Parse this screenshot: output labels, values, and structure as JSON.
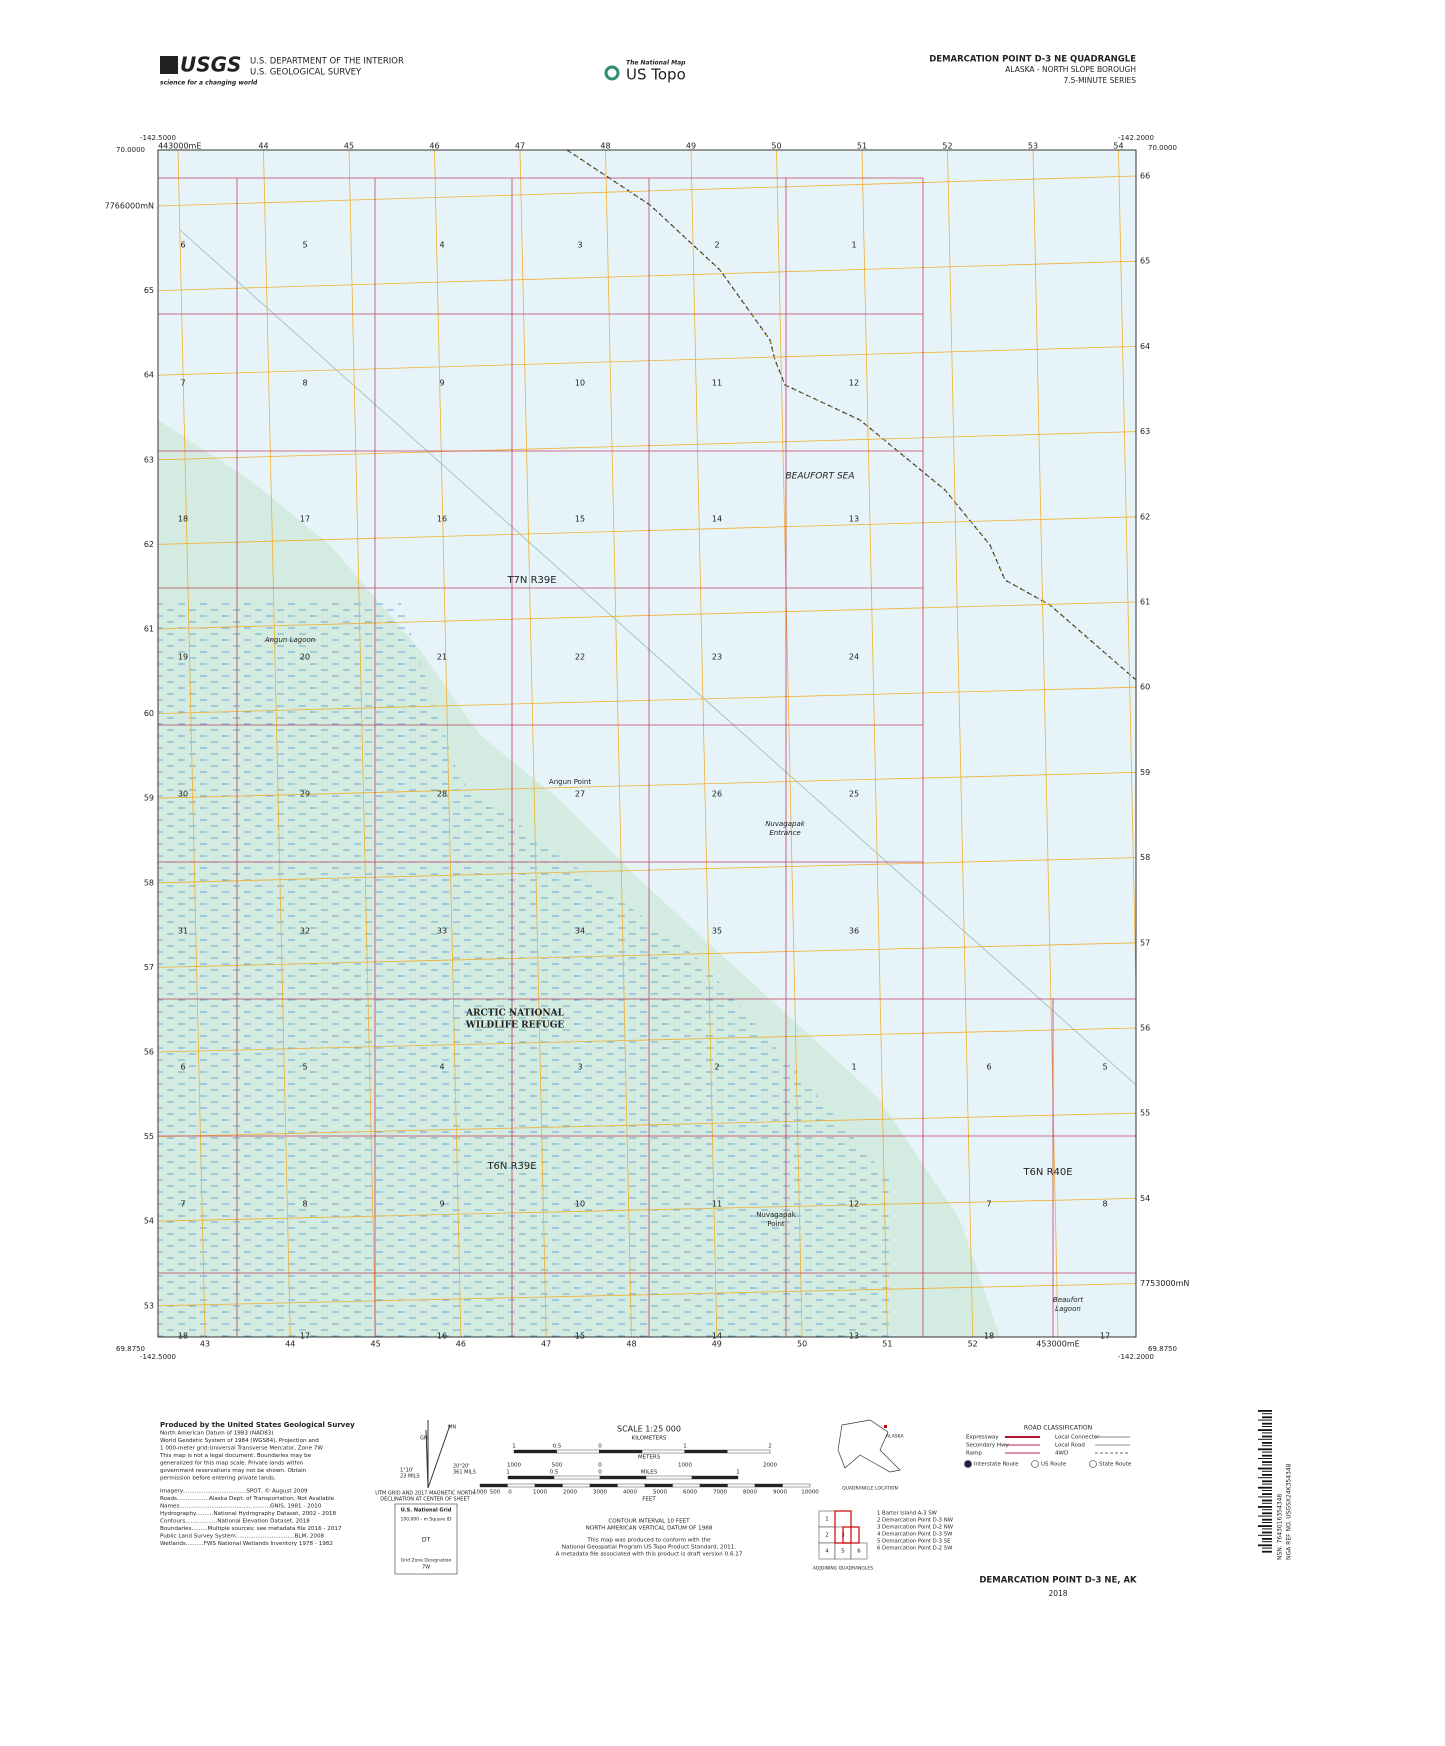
{
  "header": {
    "usgs_logo": "USGS",
    "usgs_tagline": "science for a changing world",
    "agency": [
      "U.S. DEPARTMENT OF THE INTERIOR",
      "U.S. GEOLOGICAL SURVEY"
    ],
    "national_map": "The National Map",
    "us_topo": "US Topo",
    "quad_title": "DEMARCATION POINT D-3 NE QUADRANGLE",
    "subtitle": "ALASKA - NORTH SLOPE BOROUGH",
    "series": "7.5-MINUTE SERIES"
  },
  "map": {
    "corners": {
      "top_left_lon": "-142.5000",
      "top_left_lat": "70.0000",
      "top_right_lon": "-142.2000",
      "top_right_lat": "70.0000",
      "bottom_left_lat": "69.8750",
      "bottom_left_lon": "-142.5000",
      "bottom_right_lat": "69.8750",
      "bottom_right_lon": "-142.2000"
    },
    "easting_top": [
      "443000mE",
      "44",
      "45",
      "46",
      "47",
      "48",
      "49",
      "50",
      "51",
      "52",
      "53",
      "54"
    ],
    "easting_bottom": [
      "43",
      "44",
      "45",
      "46",
      "47",
      "48",
      "49",
      "50",
      "51",
      "52",
      "453000mE"
    ],
    "northing_left": [
      "7766000mN",
      "65",
      "64",
      "63",
      "62",
      "61",
      "60",
      "59",
      "58",
      "57",
      "56",
      "55",
      "54",
      "53"
    ],
    "northing_right": [
      "66",
      "65",
      "64",
      "63",
      "62",
      "61",
      "60",
      "59",
      "58",
      "57",
      "56",
      "55",
      "54",
      "7753000mN"
    ],
    "sections": [
      [
        "6",
        "5",
        "4",
        "3",
        "2",
        "1"
      ],
      [
        "7",
        "8",
        "9",
        "10",
        "11",
        "12"
      ],
      [
        "18",
        "17",
        "16",
        "15",
        "14",
        "13"
      ],
      [
        "19",
        "20",
        "21",
        "22",
        "23",
        "24"
      ],
      [
        "30",
        "29",
        "28",
        "27",
        "26",
        "25"
      ],
      [
        "31",
        "32",
        "33",
        "34",
        "35",
        "36"
      ],
      [
        "6",
        "5",
        "4",
        "3",
        "2",
        "1",
        "6",
        "5"
      ],
      [
        "7",
        "8",
        "9",
        "10",
        "11",
        "12",
        "7",
        "8"
      ],
      [
        "18",
        "17",
        "16",
        "15",
        "14",
        "13",
        "18",
        "17"
      ]
    ],
    "beaufort_sea": "BEAUFORT SEA",
    "township_n": "T7N R39E",
    "township_s": "T6N R39E",
    "township_e": "T6N R40E",
    "angun_lagoon": "Angun Lagoon",
    "angun_point": "Angun Point",
    "nuvagapak_entrance": [
      "Nuvagapak",
      "Entrance"
    ],
    "refuge": [
      "ARCTIC NATIONAL",
      "WILDLIFE REFUGE"
    ],
    "nuvagapak_point": [
      "Nuvagapak",
      "Point"
    ],
    "beaufort_lagoon": [
      "Beaufort",
      "Lagoon"
    ]
  },
  "footer": {
    "produced_by": "Produced by the United States Geological Survey",
    "notes": [
      "North American Datum of 1983 (NAD83)",
      "World Geodetic System of 1984 (WGS84). Projection and",
      "1 000-meter grid:Universal Transverse Mercator, Zone 7W",
      "This map is not a legal document. Boundaries may be",
      "generalized for this map scale. Private lands within",
      "government reservations may not be shown. Obtain",
      "permission before entering private lands."
    ],
    "sources": [
      "Imagery....................................SPOT, © August 2009",
      "Roads..................Alaska Dept. of Transportation, Not Available",
      "Names...................................................GNIS, 1981 - 2010",
      "Hydrography..........National Hydrography Dataset, 2002 - 2018",
      "Contours..................National Elevation Dataset, 2018",
      "Boundaries.........Multiple sources; see metadata file 2016 - 2017",
      "Public Land Survey System.................................BLM, 2008",
      "Wetlands..........FWS National Wetlands Inventory 1978 - 1982"
    ],
    "declination": {
      "mn": "MN",
      "gn": "GN",
      "angle1": "1°10'",
      "mils1": "23 MILS",
      "angle2": "20°20'",
      "mils2": "361 MILS",
      "caption": [
        "UTM GRID AND 2017 MAGNETIC NORTH",
        "DECLINATION AT CENTER OF SHEET"
      ]
    },
    "usng": {
      "title": "U.S. National Grid",
      "square_label": "100,000 - m Square ID",
      "square": "DT",
      "zone_label": "Grid Zone Designation",
      "zone": "7W"
    },
    "scale": {
      "title": "SCALE 1:25 000",
      "km_ticks": [
        "1",
        "0.5",
        "0",
        "1",
        "2"
      ],
      "km": "KILOMETERS",
      "m_ticks": [
        "1000",
        "500",
        "0",
        "1000",
        "2000"
      ],
      "m": "METERS",
      "mi_ticks": [
        "1",
        "0.5",
        "0",
        "1"
      ],
      "mi": "MILES",
      "ft_ticks": [
        "1000",
        "500",
        "0",
        "1000",
        "2000",
        "3000",
        "4000",
        "5000",
        "6000",
        "7000",
        "8000",
        "9000",
        "10000"
      ],
      "ft": "FEET"
    },
    "contour": [
      "CONTOUR INTERVAL 10 FEET",
      "NORTH AMERICAN VERTICAL DATUM OF 1988"
    ],
    "standard": [
      "This map was produced to conform with the",
      "National Geospatial Program US Topo Product Standard, 2011.",
      "A metadata file associated with this product is draft version 0.6.17"
    ],
    "location": {
      "state": "ALASKA",
      "caption": "QUADRANGLE LOCATION"
    },
    "roads": {
      "title": "ROAD CLASSIFICATION",
      "left": [
        "Expressway",
        "Secondary Hwy",
        "Ramp"
      ],
      "right": [
        "Local Connector",
        "Local Road",
        "4WD"
      ],
      "routes": [
        "Interstate Route",
        "US Route",
        "State Route"
      ]
    },
    "adjoining": {
      "cells": [
        "1",
        "2",
        "3",
        "4",
        "5",
        "6"
      ],
      "list": [
        "1 Barter Island A-3 SW",
        "2 Demarcation Point D-3 NW",
        "3 Demarcation Point D-2 NW",
        "4 Demarcation Point D-3 SW",
        "5 Demarcation Point D-3 SE",
        "6 Demarcation Point D-2 SW"
      ],
      "caption": "ADJOINING QUADRANGLES"
    },
    "sheet_name": "DEMARCATION POINT D-3 NE, AK",
    "year": "2018",
    "barcode": [
      "NSN. 7643016354348",
      "NGA REF NO. USGSX24K354348"
    ]
  }
}
